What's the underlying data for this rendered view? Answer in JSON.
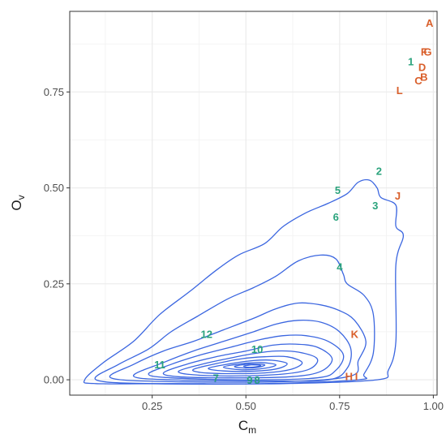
{
  "chart_data": {
    "type": "scatter",
    "title": "",
    "xlabel": {
      "main": "C",
      "sub": "m"
    },
    "ylabel": {
      "main": "O",
      "sub": "v"
    },
    "xlim": [
      0.03,
      1.01
    ],
    "ylim": [
      -0.04,
      0.96
    ],
    "x_ticks": [
      {
        "value": 0.25,
        "label": "0.25"
      },
      {
        "value": 0.5,
        "label": "0.50"
      },
      {
        "value": 0.75,
        "label": "0.75"
      },
      {
        "value": 1.0,
        "label": "1.00"
      }
    ],
    "y_ticks": [
      {
        "value": 0.0,
        "label": "0.00"
      },
      {
        "value": 0.25,
        "label": "0.25"
      },
      {
        "value": 0.5,
        "label": "0.50"
      },
      {
        "value": 0.75,
        "label": "0.75"
      }
    ],
    "grid": true,
    "legend": "none",
    "colors": {
      "group_letters": "#d95f2b",
      "group_numbers": "#2aa37c",
      "contour": "#3b66e0",
      "grid": "#ebebeb",
      "panel_border": "#333333"
    },
    "point_labels": [
      {
        "text": "A",
        "x": 0.99,
        "y": 0.93,
        "group": "letters"
      },
      {
        "text": "F",
        "x": 0.975,
        "y": 0.855,
        "group": "letters"
      },
      {
        "text": "G",
        "x": 0.985,
        "y": 0.855,
        "group": "letters"
      },
      {
        "text": "D",
        "x": 0.97,
        "y": 0.815,
        "group": "letters"
      },
      {
        "text": "B",
        "x": 0.975,
        "y": 0.79,
        "group": "letters"
      },
      {
        "text": "C",
        "x": 0.96,
        "y": 0.78,
        "group": "letters"
      },
      {
        "text": "L",
        "x": 0.91,
        "y": 0.755,
        "group": "letters"
      },
      {
        "text": "J",
        "x": 0.905,
        "y": 0.48,
        "group": "letters"
      },
      {
        "text": "K",
        "x": 0.79,
        "y": 0.12,
        "group": "letters"
      },
      {
        "text": "H",
        "x": 0.775,
        "y": 0.01,
        "group": "letters"
      },
      {
        "text": "I",
        "x": 0.795,
        "y": 0.01,
        "group": "letters"
      },
      {
        "text": "1",
        "x": 0.94,
        "y": 0.83,
        "group": "numbers"
      },
      {
        "text": "2",
        "x": 0.855,
        "y": 0.545,
        "group": "numbers"
      },
      {
        "text": "3",
        "x": 0.845,
        "y": 0.455,
        "group": "numbers"
      },
      {
        "text": "4",
        "x": 0.75,
        "y": 0.295,
        "group": "numbers"
      },
      {
        "text": "5",
        "x": 0.745,
        "y": 0.495,
        "group": "numbers"
      },
      {
        "text": "6",
        "x": 0.74,
        "y": 0.425,
        "group": "numbers"
      },
      {
        "text": "7",
        "x": 0.42,
        "y": 0.005,
        "group": "numbers"
      },
      {
        "text": "8",
        "x": 0.53,
        "y": 0.0,
        "group": "numbers"
      },
      {
        "text": "9",
        "x": 0.51,
        "y": 0.0,
        "group": "numbers"
      },
      {
        "text": "10",
        "x": 0.53,
        "y": 0.08,
        "group": "numbers"
      },
      {
        "text": "11",
        "x": 0.27,
        "y": 0.04,
        "group": "numbers"
      },
      {
        "text": "12",
        "x": 0.395,
        "y": 0.12,
        "group": "numbers"
      }
    ],
    "density_contours": [
      [
        [
          0.07,
          0.0
        ],
        [
          0.12,
          0.045
        ],
        [
          0.2,
          0.1
        ],
        [
          0.27,
          0.17
        ],
        [
          0.35,
          0.23
        ],
        [
          0.42,
          0.285
        ],
        [
          0.48,
          0.325
        ],
        [
          0.55,
          0.355
        ],
        [
          0.6,
          0.4
        ],
        [
          0.66,
          0.435
        ],
        [
          0.72,
          0.46
        ],
        [
          0.77,
          0.485
        ],
        [
          0.8,
          0.515
        ],
        [
          0.83,
          0.52
        ],
        [
          0.85,
          0.5
        ],
        [
          0.86,
          0.475
        ],
        [
          0.9,
          0.455
        ],
        [
          0.9,
          0.4
        ],
        [
          0.92,
          0.375
        ],
        [
          0.9,
          0.3
        ],
        [
          0.9,
          0.1
        ],
        [
          0.88,
          0.025
        ],
        [
          0.85,
          0.0
        ],
        [
          0.6,
          -0.01
        ],
        [
          0.3,
          -0.01
        ],
        [
          0.1,
          -0.01
        ],
        [
          0.07,
          0.0
        ]
      ],
      [
        [
          0.1,
          0.0
        ],
        [
          0.16,
          0.04
        ],
        [
          0.24,
          0.08
        ],
        [
          0.3,
          0.125
        ],
        [
          0.37,
          0.165
        ],
        [
          0.45,
          0.21
        ],
        [
          0.52,
          0.24
        ],
        [
          0.58,
          0.27
        ],
        [
          0.64,
          0.31
        ],
        [
          0.7,
          0.325
        ],
        [
          0.74,
          0.315
        ],
        [
          0.76,
          0.275
        ],
        [
          0.77,
          0.25
        ],
        [
          0.815,
          0.22
        ],
        [
          0.84,
          0.17
        ],
        [
          0.84,
          0.07
        ],
        [
          0.815,
          0.015
        ],
        [
          0.8,
          0.0
        ],
        [
          0.55,
          -0.01
        ],
        [
          0.25,
          -0.01
        ],
        [
          0.1,
          0.0
        ]
      ],
      [
        [
          0.14,
          0.005
        ],
        [
          0.2,
          0.04
        ],
        [
          0.28,
          0.075
        ],
        [
          0.36,
          0.1
        ],
        [
          0.44,
          0.13
        ],
        [
          0.52,
          0.16
        ],
        [
          0.58,
          0.185
        ],
        [
          0.64,
          0.2
        ],
        [
          0.7,
          0.195
        ],
        [
          0.75,
          0.18
        ],
        [
          0.79,
          0.155
        ],
        [
          0.82,
          0.1
        ],
        [
          0.8,
          0.05
        ],
        [
          0.78,
          0.01
        ],
        [
          0.6,
          -0.005
        ],
        [
          0.3,
          -0.005
        ],
        [
          0.14,
          0.005
        ]
      ],
      [
        [
          0.2,
          0.01
        ],
        [
          0.28,
          0.045
        ],
        [
          0.36,
          0.075
        ],
        [
          0.44,
          0.1
        ],
        [
          0.52,
          0.125
        ],
        [
          0.58,
          0.145
        ],
        [
          0.64,
          0.155
        ],
        [
          0.7,
          0.15
        ],
        [
          0.75,
          0.125
        ],
        [
          0.78,
          0.08
        ],
        [
          0.77,
          0.03
        ],
        [
          0.72,
          0.0
        ],
        [
          0.55,
          -0.003
        ],
        [
          0.3,
          0.0
        ],
        [
          0.2,
          0.01
        ]
      ],
      [
        [
          0.24,
          0.015
        ],
        [
          0.3,
          0.04
        ],
        [
          0.38,
          0.065
        ],
        [
          0.46,
          0.085
        ],
        [
          0.54,
          0.105
        ],
        [
          0.6,
          0.115
        ],
        [
          0.66,
          0.115
        ],
        [
          0.72,
          0.1
        ],
        [
          0.76,
          0.065
        ],
        [
          0.74,
          0.025
        ],
        [
          0.69,
          0.005
        ],
        [
          0.5,
          0.0
        ],
        [
          0.3,
          0.005
        ],
        [
          0.24,
          0.015
        ]
      ],
      [
        [
          0.28,
          0.018
        ],
        [
          0.34,
          0.04
        ],
        [
          0.42,
          0.06
        ],
        [
          0.5,
          0.075
        ],
        [
          0.57,
          0.09
        ],
        [
          0.63,
          0.093
        ],
        [
          0.69,
          0.085
        ],
        [
          0.73,
          0.055
        ],
        [
          0.7,
          0.022
        ],
        [
          0.62,
          0.008
        ],
        [
          0.45,
          0.005
        ],
        [
          0.32,
          0.008
        ],
        [
          0.28,
          0.018
        ]
      ],
      [
        [
          0.32,
          0.022
        ],
        [
          0.38,
          0.04
        ],
        [
          0.45,
          0.055
        ],
        [
          0.52,
          0.068
        ],
        [
          0.58,
          0.075
        ],
        [
          0.64,
          0.072
        ],
        [
          0.69,
          0.055
        ],
        [
          0.67,
          0.028
        ],
        [
          0.6,
          0.015
        ],
        [
          0.47,
          0.01
        ],
        [
          0.36,
          0.013
        ],
        [
          0.32,
          0.022
        ]
      ],
      [
        [
          0.36,
          0.027
        ],
        [
          0.42,
          0.042
        ],
        [
          0.49,
          0.055
        ],
        [
          0.55,
          0.06
        ],
        [
          0.61,
          0.06
        ],
        [
          0.65,
          0.045
        ],
        [
          0.62,
          0.027
        ],
        [
          0.55,
          0.018
        ],
        [
          0.45,
          0.016
        ],
        [
          0.38,
          0.019
        ],
        [
          0.36,
          0.027
        ]
      ],
      [
        [
          0.4,
          0.03
        ],
        [
          0.46,
          0.042
        ],
        [
          0.52,
          0.05
        ],
        [
          0.57,
          0.051
        ],
        [
          0.61,
          0.042
        ],
        [
          0.58,
          0.028
        ],
        [
          0.51,
          0.022
        ],
        [
          0.44,
          0.023
        ],
        [
          0.4,
          0.03
        ]
      ],
      [
        [
          0.44,
          0.033
        ],
        [
          0.49,
          0.042
        ],
        [
          0.54,
          0.045
        ],
        [
          0.58,
          0.039
        ],
        [
          0.55,
          0.03
        ],
        [
          0.49,
          0.026
        ],
        [
          0.44,
          0.033
        ]
      ],
      [
        [
          0.47,
          0.035
        ],
        [
          0.51,
          0.041
        ],
        [
          0.55,
          0.039
        ],
        [
          0.53,
          0.032
        ],
        [
          0.49,
          0.031
        ],
        [
          0.47,
          0.035
        ]
      ],
      [
        [
          0.495,
          0.036
        ],
        [
          0.52,
          0.039
        ],
        [
          0.54,
          0.037
        ],
        [
          0.52,
          0.033
        ],
        [
          0.5,
          0.033
        ],
        [
          0.495,
          0.036
        ]
      ]
    ]
  }
}
